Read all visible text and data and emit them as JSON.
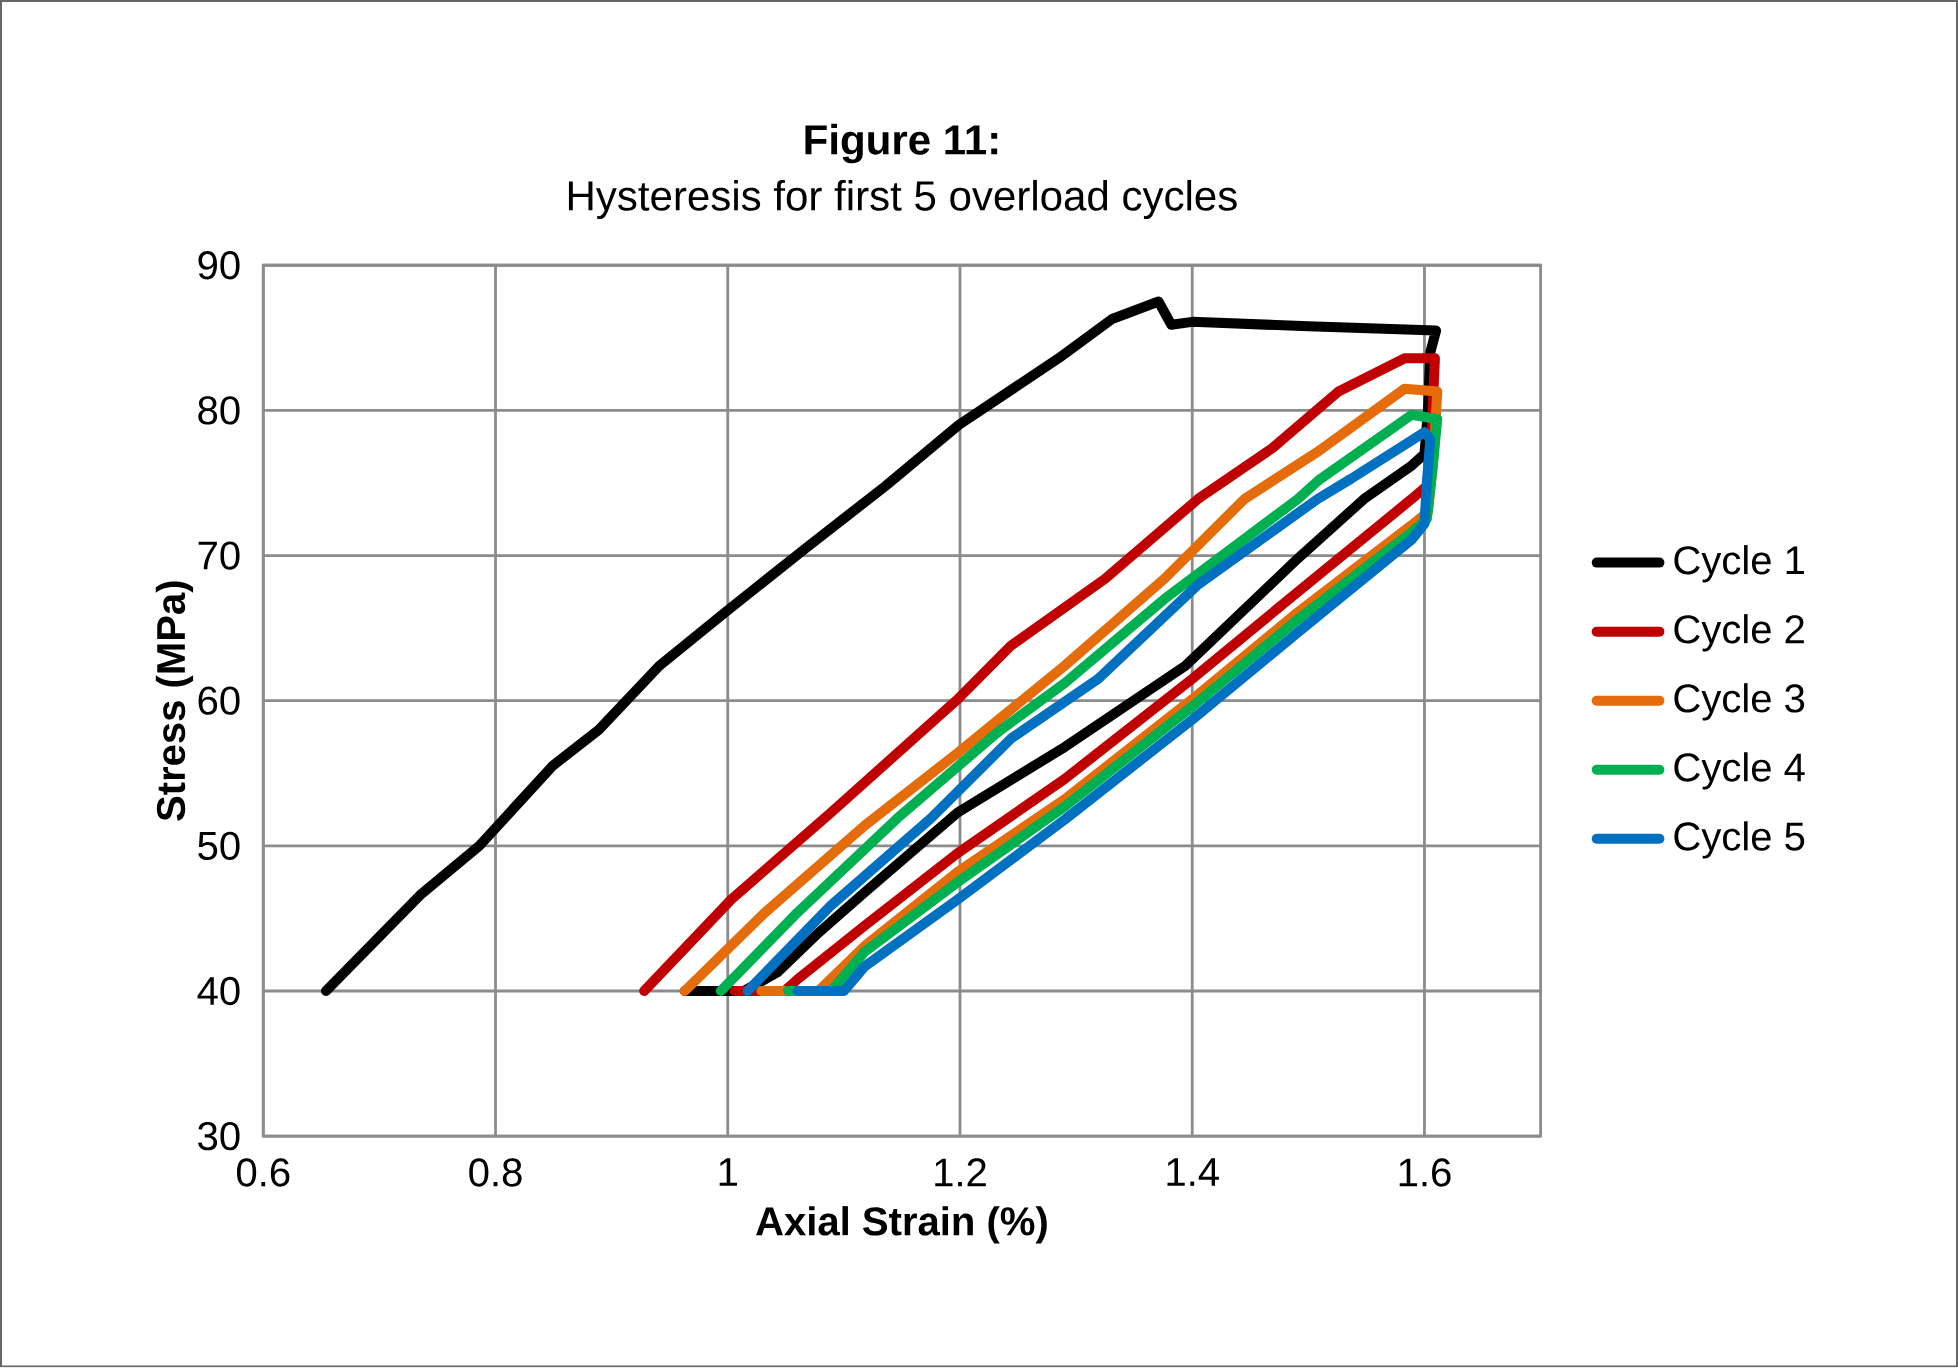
{
  "chart_data": {
    "type": "line",
    "title": "Figure 11:",
    "subtitle": "Hysteresis for first 5 overload cycles",
    "xlabel": "Axial Strain (%)",
    "ylabel": "Stress (MPa)",
    "xlim": [
      0.6,
      1.7
    ],
    "ylim": [
      30,
      90
    ],
    "xticks": [
      0.6,
      0.8,
      1,
      1.2,
      1.4,
      1.6
    ],
    "yticks": [
      30,
      40,
      50,
      60,
      70,
      80,
      90
    ],
    "grid": true,
    "legend": "right",
    "marker": "none",
    "line_style": "solid",
    "series": [
      {
        "name": "Cycle 1",
        "color": "#000000",
        "x": [
          0.654,
          0.735,
          0.786,
          0.849,
          0.889,
          0.941,
          0.998,
          1.067,
          1.136,
          1.199,
          1.285,
          1.331,
          1.371,
          1.382,
          1.4,
          1.5,
          1.61,
          1.605,
          1.603,
          1.6,
          1.589,
          1.548,
          1.491,
          1.394,
          1.29,
          1.198,
          1.118,
          1.078,
          1.043,
          1.014,
          0.963
        ],
        "values": [
          40,
          46.6,
          50,
          55.5,
          58,
          62.4,
          66.1,
          70.5,
          74.8,
          79,
          83.6,
          86.3,
          87.5,
          85.9,
          86.1,
          85.8,
          85.5,
          84,
          80,
          77,
          76.2,
          73.9,
          69.8,
          62.4,
          56.8,
          52.3,
          46.8,
          44,
          41.3,
          40,
          40
        ]
      },
      {
        "name": "Cycle 2",
        "color": "#c00000",
        "x": [
          0.928,
          1.003,
          1.089,
          1.198,
          1.244,
          1.325,
          1.405,
          1.469,
          1.526,
          1.583,
          1.609,
          1.607,
          1.605,
          1.589,
          1.491,
          1.4,
          1.29,
          1.198,
          1.118,
          1.06,
          1.049,
          1.006
        ],
        "values": [
          40,
          46.3,
          52.3,
          60.1,
          63.8,
          68.4,
          73.9,
          77.4,
          81.3,
          83.6,
          83.6,
          80,
          75,
          73.9,
          67.5,
          61.5,
          54.6,
          49.5,
          44.5,
          40.8,
          40,
          40
        ]
      },
      {
        "name": "Cycle 3",
        "color": "#e46c0a",
        "x": [
          0.963,
          1.032,
          1.118,
          1.198,
          1.29,
          1.376,
          1.445,
          1.509,
          1.583,
          1.611,
          1.608,
          1.603,
          1.589,
          1.491,
          1.4,
          1.29,
          1.198,
          1.118,
          1.078,
          1.029
        ],
        "values": [
          40,
          45.4,
          51.4,
          56.4,
          62.4,
          68.4,
          73.9,
          77.2,
          81.5,
          81.3,
          77,
          73,
          72.1,
          66.1,
          60.1,
          53.2,
          48.2,
          43.1,
          40,
          40
        ]
      },
      {
        "name": "Cycle 4",
        "color": "#00b050",
        "x": [
          0.994,
          1.06,
          1.146,
          1.232,
          1.29,
          1.376,
          1.491,
          1.509,
          1.589,
          1.611,
          1.607,
          1.602,
          1.589,
          1.491,
          1.4,
          1.29,
          1.198,
          1.118,
          1.089,
          1.052
        ],
        "values": [
          40,
          45.4,
          51.9,
          57.8,
          61.2,
          67,
          73.9,
          75.2,
          79.7,
          79.4,
          76,
          72.5,
          71.6,
          65.6,
          59.6,
          52.7,
          47.5,
          42.7,
          40,
          40
        ]
      },
      {
        "name": "Cycle 5",
        "color": "#0070c0",
        "x": [
          1.017,
          1.089,
          1.175,
          1.244,
          1.319,
          1.405,
          1.508,
          1.537,
          1.6,
          1.605,
          1.602,
          1.6,
          1.589,
          1.491,
          1.4,
          1.29,
          1.198,
          1.118,
          1.1,
          1.06
        ],
        "values": [
          40,
          45.9,
          51.9,
          57.4,
          61.5,
          68,
          73.9,
          75.3,
          78.5,
          78,
          75,
          72.2,
          71.1,
          64.7,
          58.7,
          51.8,
          46.3,
          41.7,
          40,
          40
        ]
      }
    ]
  }
}
